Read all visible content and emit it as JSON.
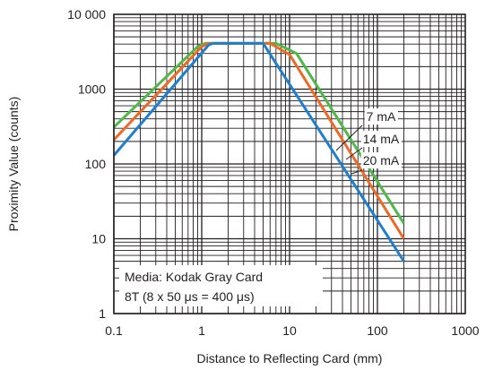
{
  "chart_data": {
    "type": "line",
    "x_scale": "log",
    "y_scale": "log",
    "xlim": [
      0.1,
      1000
    ],
    "ylim": [
      1,
      10000
    ],
    "xlabel": "Distance to Reflecting Card (mm)",
    "ylabel": "Proximity Value (counts)",
    "x_ticks": [
      {
        "value": 0.1,
        "label": "0.1"
      },
      {
        "value": 1,
        "label": "1"
      },
      {
        "value": 10,
        "label": "10"
      },
      {
        "value": 100,
        "label": "100"
      },
      {
        "value": 1000,
        "label": "1000"
      }
    ],
    "y_ticks": [
      {
        "value": 1,
        "label": "1"
      },
      {
        "value": 10,
        "label": "10"
      },
      {
        "value": 100,
        "label": "100"
      },
      {
        "value": 1000,
        "label": "1000"
      },
      {
        "value": 10000,
        "label": "10 000"
      }
    ],
    "grid": true,
    "series": [
      {
        "name": "7 mA",
        "color": "#1f7fcf",
        "points": [
          [
            0.1,
            130
          ],
          [
            1.2,
            3900
          ],
          [
            1.35,
            4095
          ],
          [
            5,
            4095
          ],
          [
            200,
            5
          ]
        ]
      },
      {
        "name": "14 mA",
        "color": "#ee6a24",
        "points": [
          [
            0.1,
            210
          ],
          [
            1.0,
            3700
          ],
          [
            1.2,
            4095
          ],
          [
            6,
            4095
          ],
          [
            10,
            2900
          ],
          [
            200,
            10
          ]
        ]
      },
      {
        "name": "20 mA",
        "color": "#4fb848",
        "points": [
          [
            0.1,
            310
          ],
          [
            0.9,
            3700
          ],
          [
            1.1,
            4095
          ],
          [
            7,
            4095
          ],
          [
            12,
            3000
          ],
          [
            200,
            16
          ]
        ]
      }
    ],
    "annotation": {
      "line1": "Media: Kodak Gray Card",
      "line2": "8T (8 x 50 μs = 400 μs)"
    }
  }
}
